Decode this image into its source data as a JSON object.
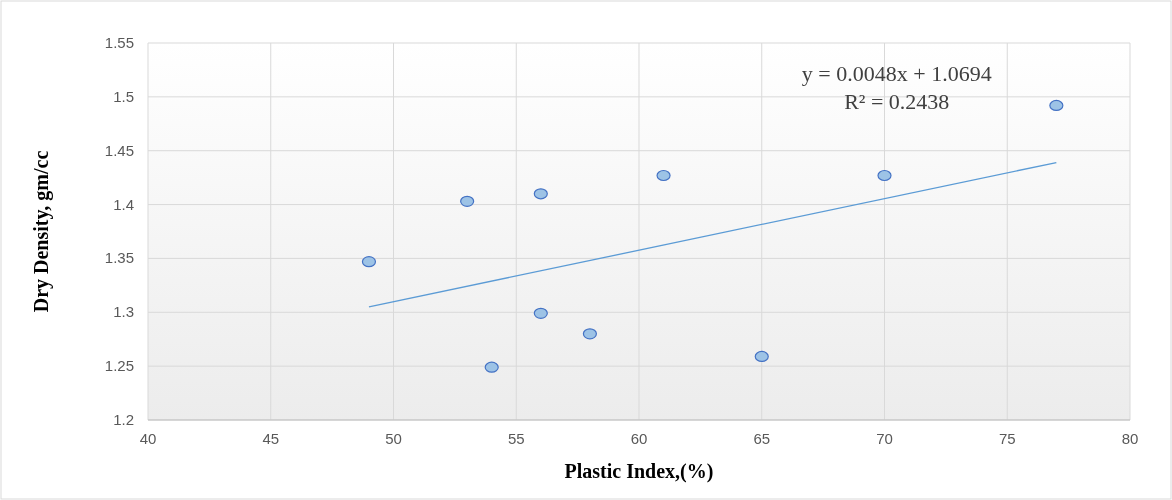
{
  "chart_data": {
    "type": "scatter",
    "xlabel": "Plastic Index,(%)",
    "ylabel": "Dry Density, gm/cc",
    "xlim": [
      40,
      80
    ],
    "xticks": [
      40,
      45,
      50,
      55,
      60,
      65,
      70,
      75,
      80
    ],
    "ylim": [
      1.2,
      1.55
    ],
    "yticks": [
      {
        "value": 1.2,
        "label": "1.2"
      },
      {
        "value": 1.25,
        "label": "1.25"
      },
      {
        "value": 1.3,
        "label": "1.3"
      },
      {
        "value": 1.35,
        "label": "1.35"
      },
      {
        "value": 1.4,
        "label": "1.4"
      },
      {
        "value": 1.45,
        "label": "1.45"
      },
      {
        "value": 1.5,
        "label": "1.5"
      },
      {
        "value": 1.55,
        "label": "1.55"
      }
    ],
    "grid": true,
    "marker": "circle",
    "series": [
      {
        "color": "#9dc3e6",
        "x": [
          49,
          53,
          54,
          56,
          56,
          58,
          61,
          65,
          70,
          77
        ],
        "values": [
          1.347,
          1.403,
          1.249,
          1.41,
          1.299,
          1.28,
          1.427,
          1.259,
          1.427,
          1.492
        ]
      },
      {
        "type": "line",
        "color": "#5b9bd5",
        "x": [
          49,
          77
        ],
        "values": [
          1.305,
          1.439
        ],
        "line_style": "solid",
        "marker": "none"
      }
    ],
    "annotations": [
      "y = 0.0048x + 1.0694",
      "R² = 0.2438"
    ]
  }
}
